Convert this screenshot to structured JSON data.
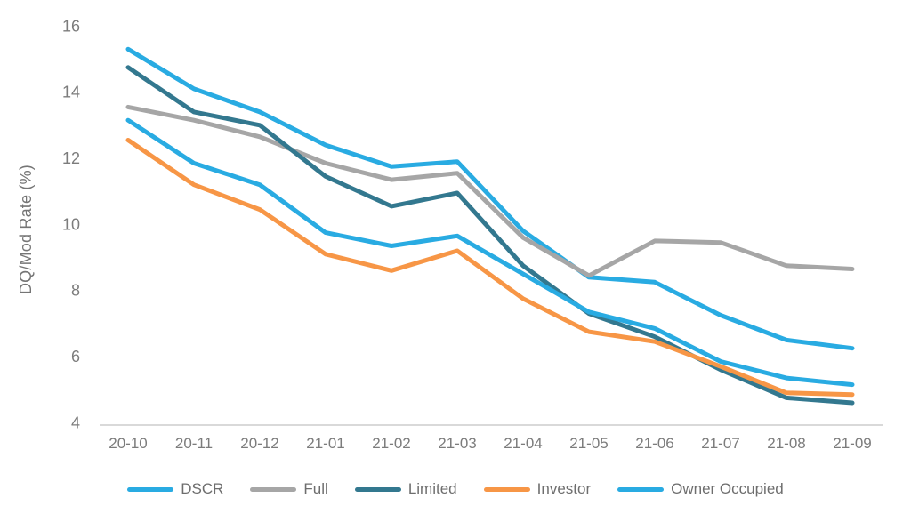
{
  "chart_data": {
    "type": "line",
    "title": "",
    "xlabel": "",
    "ylabel": "DQ/Mod Rate (%)",
    "ylim": [
      4,
      16
    ],
    "yticks": [
      4,
      6,
      8,
      10,
      12,
      14,
      16
    ],
    "grid": false,
    "legend_position": "bottom",
    "categories": [
      "20-10",
      "20-11",
      "20-12",
      "21-01",
      "21-02",
      "21-03",
      "21-04",
      "21-05",
      "21-06",
      "21-07",
      "21-08",
      "21-09"
    ],
    "series": [
      {
        "name": "DSCR",
        "color": "#29ABE2",
        "values": [
          15.3,
          14.1,
          13.4,
          12.4,
          11.75,
          11.9,
          9.8,
          8.4,
          8.25,
          7.25,
          6.5,
          6.25
        ]
      },
      {
        "name": "Full",
        "color": "#A6A6A6",
        "values": [
          13.55,
          13.15,
          12.65,
          11.85,
          11.35,
          11.55,
          9.6,
          8.45,
          9.5,
          9.45,
          8.75,
          8.65
        ]
      },
      {
        "name": "Limited",
        "color": "#33788F",
        "values": [
          14.75,
          13.4,
          13.0,
          11.45,
          10.55,
          10.95,
          8.75,
          7.3,
          6.6,
          5.6,
          4.75,
          4.6
        ]
      },
      {
        "name": "Investor",
        "color": "#F79646",
        "values": [
          12.55,
          11.2,
          10.45,
          9.1,
          8.6,
          9.2,
          7.75,
          6.75,
          6.45,
          5.7,
          4.9,
          4.85
        ]
      },
      {
        "name": "Owner Occupied",
        "color": "#29ABE2",
        "values": [
          13.15,
          11.85,
          11.2,
          9.75,
          9.35,
          9.65,
          8.5,
          7.35,
          6.85,
          5.85,
          5.35,
          5.15
        ]
      }
    ]
  },
  "colors": {
    "axis_line": "#D9D9D9",
    "tick_label": "#7c7c7c"
  }
}
